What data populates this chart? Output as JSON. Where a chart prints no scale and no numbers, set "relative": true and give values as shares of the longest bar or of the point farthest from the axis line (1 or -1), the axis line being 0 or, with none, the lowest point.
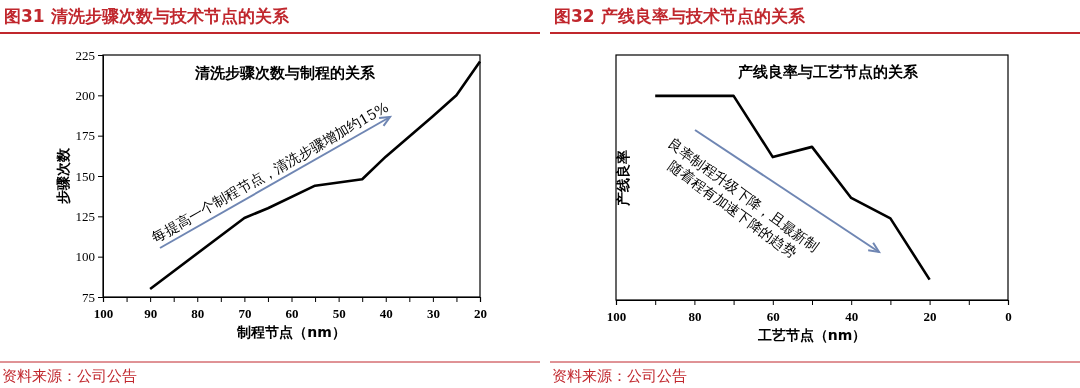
{
  "chart_data": [
    {
      "type": "line",
      "title": "图31  清洗步骤次数与技术节点的关系",
      "subtitle": "清洗步骤次数与制程的关系",
      "xlabel": "制程节点（nm）",
      "ylabel": "步骤次数",
      "x": [
        90,
        70,
        65,
        55,
        45,
        40,
        30,
        25,
        20
      ],
      "series": [
        {
          "color": "#000000",
          "values": [
            80,
            124,
            130,
            144,
            148,
            162,
            187,
            200,
            221
          ]
        }
      ],
      "xlim": [
        100,
        20
      ],
      "xticks": [
        100,
        {
          "value": 95,
          "label": null
        },
        90,
        {
          "value": 85,
          "label": null
        },
        80,
        {
          "value": 75,
          "label": null
        },
        70,
        {
          "value": 65,
          "label": null
        },
        60,
        {
          "value": 55,
          "label": null
        },
        50,
        {
          "value": 45,
          "label": null
        },
        40,
        {
          "value": 35,
          "label": null
        },
        30,
        {
          "value": 25,
          "label": null
        },
        20
      ],
      "ylim": [
        75,
        225
      ],
      "yticks": [
        75,
        100,
        125,
        150,
        175,
        200,
        225
      ],
      "grid": false,
      "annotations": [
        "每提高一个制程节点，清洗步骤增加约15%",
        "资料来源：公司公告"
      ]
    },
    {
      "type": "line",
      "title": "图32  产线良率与技术节点的关系",
      "subtitle": "产线良率与工艺节点的关系",
      "xlabel": "工艺节点（nm）",
      "ylabel": "产线良率",
      "relative": true,
      "x": [
        90,
        70,
        60,
        50,
        40,
        30,
        20
      ],
      "series": [
        {
          "color": "#000000",
          "values": [
            1,
            1,
            0.7,
            0.75,
            0.5,
            0.4,
            0.1
          ]
        }
      ],
      "xlim": [
        100,
        0
      ],
      "xticks": [
        100,
        {
          "value": 90,
          "label": null
        },
        80,
        {
          "value": 70,
          "label": null
        },
        60,
        {
          "value": 50,
          "label": null
        },
        40,
        {
          "value": 30,
          "label": null
        },
        20,
        {
          "value": 10,
          "label": null
        },
        0
      ],
      "tick_labels": "x",
      "grid": false,
      "annotations": [
        "良率制程升级下降，且最新制",
        "随着程有加速下降的趋势",
        "资料来源：公司公告"
      ]
    }
  ]
}
